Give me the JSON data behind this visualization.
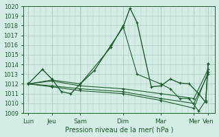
{
  "xlabel": "Pression niveau de la mer( hPa )",
  "background_color": "#d4ece6",
  "grid_color": "#a8ccbb",
  "line_color": "#1a5c28",
  "ylim": [
    1009,
    1020
  ],
  "yticks": [
    1009,
    1010,
    1011,
    1012,
    1013,
    1014,
    1015,
    1016,
    1017,
    1018,
    1019,
    1020
  ],
  "xtick_labels": [
    "Lun",
    "Jeu",
    "Sam",
    "Dim",
    "Mar",
    "Mer",
    "Ven"
  ],
  "xtick_positions": [
    0,
    10,
    22,
    40,
    56,
    70,
    76
  ],
  "xlim": [
    -2,
    79
  ],
  "lines": [
    {
      "x": [
        0,
        6,
        10,
        14,
        18,
        22,
        28,
        35,
        40,
        43,
        46,
        52,
        56,
        60,
        64,
        68,
        72,
        75,
        76
      ],
      "y": [
        1012,
        1013.5,
        1012.5,
        1011.2,
        1011.0,
        1012.0,
        1013.4,
        1016.0,
        1017.8,
        1019.8,
        1018.3,
        1011.7,
        1011.8,
        1012.5,
        1012.1,
        1012.0,
        1011.0,
        1010.1,
        1014.1
      ],
      "lw": 1.0
    },
    {
      "x": [
        0,
        10,
        22,
        35,
        40,
        46,
        56,
        60,
        64,
        68,
        72,
        75,
        76
      ],
      "y": [
        1012,
        1012.4,
        1012.0,
        1015.8,
        1018.0,
        1013.0,
        1012.0,
        1011.5,
        1010.5,
        1010.5,
        1009.2,
        1010.3,
        1014.1
      ],
      "lw": 0.8
    },
    {
      "x": [
        0,
        10,
        22,
        40,
        56,
        70,
        76
      ],
      "y": [
        1012,
        1012.3,
        1011.8,
        1011.5,
        1011.0,
        1010.5,
        1013.5
      ],
      "lw": 0.8
    },
    {
      "x": [
        0,
        10,
        22,
        40,
        56,
        70,
        76
      ],
      "y": [
        1012,
        1011.8,
        1011.5,
        1011.2,
        1010.5,
        1010.0,
        1013.0
      ],
      "lw": 0.8
    },
    {
      "x": [
        0,
        10,
        22,
        40,
        56,
        70,
        76
      ],
      "y": [
        1012,
        1011.7,
        1011.3,
        1011.0,
        1010.3,
        1009.5,
        1013.2
      ],
      "lw": 0.8
    }
  ]
}
